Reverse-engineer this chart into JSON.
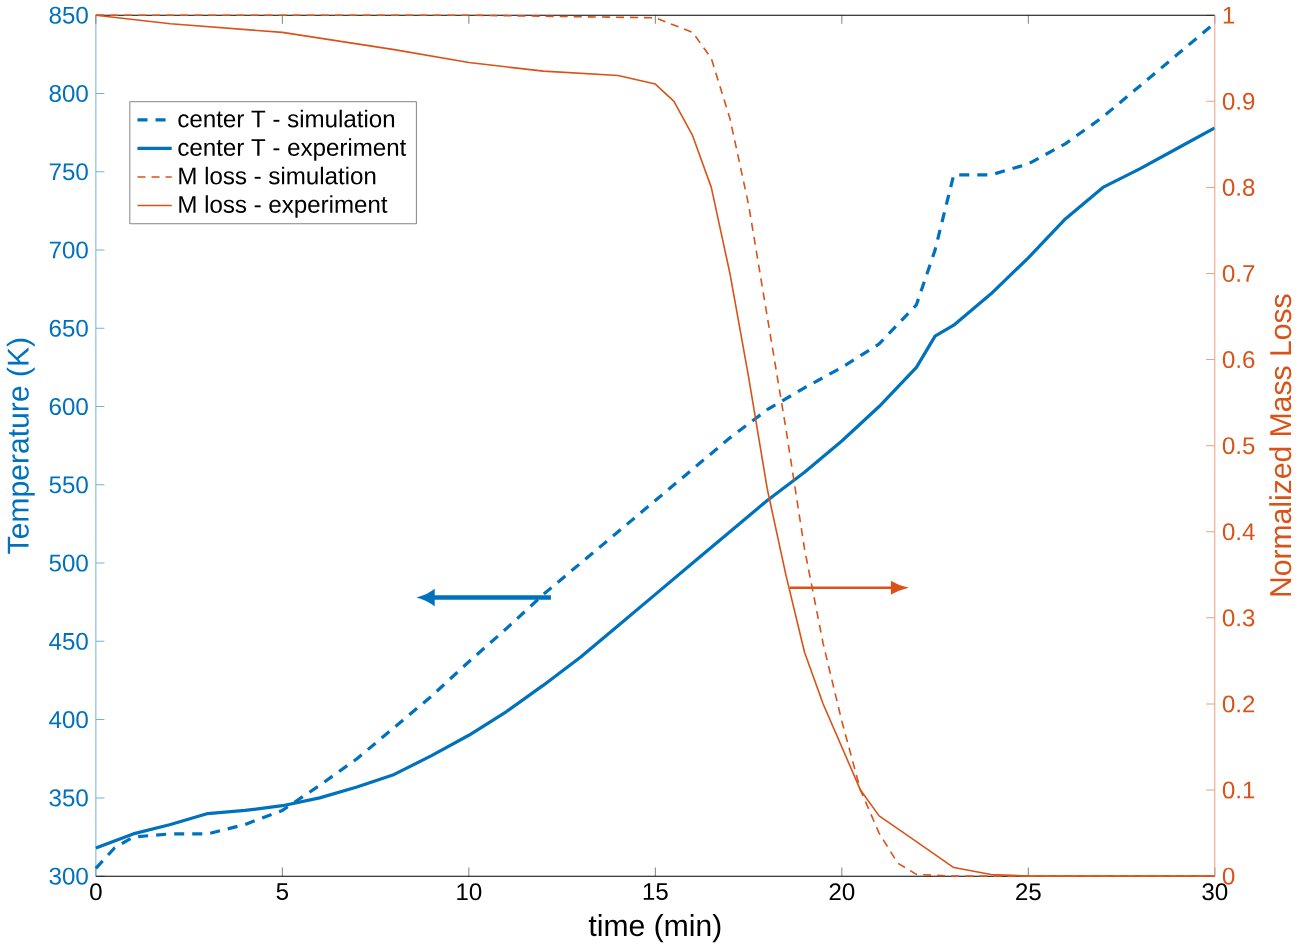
{
  "chart_data": {
    "type": "line",
    "xlabel": "time (min)",
    "ylabel": "Temperature (K)",
    "y2label": "Normalized Mass Loss",
    "xlim": [
      0,
      30
    ],
    "xticks": [
      0,
      5,
      10,
      15,
      20,
      25,
      30
    ],
    "ylim": [
      300,
      850
    ],
    "yticks": [
      300,
      350,
      400,
      450,
      500,
      550,
      600,
      650,
      700,
      750,
      800,
      850
    ],
    "y2lim": [
      0,
      1
    ],
    "y2ticks": [
      0,
      0.1,
      0.2,
      0.3,
      0.4,
      0.5,
      0.6,
      0.7,
      0.8,
      0.9,
      1
    ],
    "legend": "top left",
    "grid": false,
    "series": [
      {
        "name": "center T - simulation",
        "color": "#0072bd",
        "line_style": "dashed",
        "x": [
          0,
          0.5,
          1,
          2,
          3,
          4,
          5,
          6,
          7,
          8,
          9,
          10,
          11,
          12,
          13,
          14,
          15,
          16,
          17,
          18,
          19,
          20,
          21,
          22,
          22.5,
          23,
          24,
          25,
          26,
          27,
          28,
          29,
          30
        ],
        "values": [
          305,
          318,
          325,
          327,
          327,
          333,
          342,
          358,
          375,
          395,
          415,
          437,
          458,
          480,
          500,
          520,
          540,
          560,
          580,
          598,
          612,
          625,
          640,
          665,
          700,
          748,
          748,
          755,
          768,
          785,
          805,
          825,
          845
        ]
      },
      {
        "name": "center T - experiment",
        "color": "#0072bd",
        "line_style": "solid",
        "x": [
          0,
          1,
          2,
          3,
          4,
          5,
          6,
          7,
          8,
          9,
          10,
          11,
          12,
          13,
          14,
          15,
          16,
          17,
          18,
          19,
          20,
          21,
          22,
          22.5,
          23,
          24,
          25,
          26,
          27,
          28,
          29,
          30
        ],
        "values": [
          318,
          327,
          333,
          340,
          342,
          345,
          350,
          357,
          365,
          377,
          390,
          405,
          422,
          440,
          460,
          480,
          500,
          520,
          540,
          558,
          578,
          600,
          625,
          645,
          652,
          672,
          695,
          720,
          740,
          752,
          765,
          778
        ]
      },
      {
        "name": "M loss - simulation",
        "color": "#d95319",
        "line_style": "dashed",
        "axis": "y2",
        "x": [
          0,
          5,
          10,
          15,
          16,
          16.5,
          17,
          17.5,
          18,
          18.5,
          19,
          19.5,
          20,
          20.5,
          21,
          21.5,
          22,
          23,
          30
        ],
        "values": [
          1,
          1,
          1,
          0.997,
          0.98,
          0.95,
          0.88,
          0.78,
          0.65,
          0.52,
          0.38,
          0.27,
          0.18,
          0.1,
          0.05,
          0.015,
          0.002,
          0,
          0
        ]
      },
      {
        "name": "M loss - experiment",
        "color": "#d95319",
        "line_style": "solid",
        "axis": "y2",
        "x": [
          0,
          2,
          5,
          8,
          10,
          12,
          14,
          15,
          15.5,
          16,
          16.5,
          17,
          17.5,
          18,
          18.5,
          19,
          19.5,
          20,
          20.5,
          21,
          22,
          23,
          24,
          25,
          30
        ],
        "values": [
          1,
          0.99,
          0.98,
          0.96,
          0.945,
          0.935,
          0.93,
          0.92,
          0.9,
          0.86,
          0.8,
          0.7,
          0.58,
          0.45,
          0.35,
          0.26,
          0.2,
          0.15,
          0.1,
          0.07,
          0.04,
          0.01,
          0.002,
          0,
          0
        ]
      }
    ]
  }
}
